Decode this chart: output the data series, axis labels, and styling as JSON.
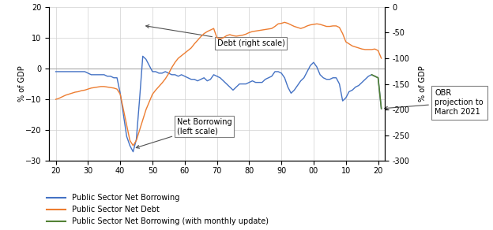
{
  "ylabel_left": "% of GDP",
  "ylabel_right": "% of GDP",
  "ylim_left": [
    -30,
    20
  ],
  "ylim_right": [
    0,
    300
  ],
  "yticks_left": [
    -30,
    -20,
    -10,
    0,
    10,
    20
  ],
  "yticks_right": [
    0,
    50,
    100,
    150,
    200,
    250,
    300
  ],
  "ytick_right_labels": [
    "0",
    "-50",
    "-100",
    "-150",
    "-200",
    "-250",
    "-300"
  ],
  "xtick_labels": [
    "20",
    "30",
    "40",
    "50",
    "60",
    "70",
    "80",
    "90",
    "00",
    "10",
    "20"
  ],
  "color_borrowing": "#4472C4",
  "color_debt": "#ED7D31",
  "color_green": "#538135",
  "legend_labels": [
    "Public Sector Net Borrowing",
    "Public Sector Net Debt",
    "Public Sector Net Borrowing (with monthly update)"
  ],
  "annotation_debt": "Debt (right scale)",
  "annotation_borrowing": "Net Borrowing\n(left scale)",
  "annotation_obr": "OBR\nprojection to\nMarch 2021",
  "background_color": "#ffffff",
  "grid_color": "#d0d0d0",
  "borrowing_years": [
    1920,
    1921,
    1922,
    1923,
    1924,
    1925,
    1926,
    1927,
    1928,
    1929,
    1930,
    1931,
    1932,
    1933,
    1934,
    1935,
    1936,
    1937,
    1938,
    1939,
    1940,
    1941,
    1942,
    1943,
    1944,
    1945,
    1946,
    1947,
    1948,
    1949,
    1950,
    1951,
    1952,
    1953,
    1954,
    1955,
    1956,
    1957,
    1958,
    1959,
    1960,
    1961,
    1962,
    1963,
    1964,
    1965,
    1966,
    1967,
    1968,
    1969,
    1970,
    1971,
    1972,
    1973,
    1974,
    1975,
    1976,
    1977,
    1978,
    1979,
    1980,
    1981,
    1982,
    1983,
    1984,
    1985,
    1986,
    1987,
    1988,
    1989,
    1990,
    1991,
    1992,
    1993,
    1994,
    1995,
    1996,
    1997,
    1998,
    1999,
    2000,
    2001,
    2002,
    2003,
    2004,
    2005,
    2006,
    2007,
    2008,
    2009,
    2010,
    2011,
    2012,
    2013,
    2014,
    2015,
    2016,
    2017,
    2018,
    2019,
    2020,
    2021
  ],
  "borrowing_vals": [
    -1.0,
    -1.0,
    -1.0,
    -1.0,
    -1.0,
    -1.0,
    -1.0,
    -1.0,
    -1.0,
    -1.0,
    -1.5,
    -2.0,
    -2.0,
    -2.0,
    -2.0,
    -2.0,
    -2.5,
    -2.5,
    -3.0,
    -3.0,
    -8.0,
    -15.0,
    -22.0,
    -25.0,
    -27.0,
    -23.0,
    -10.0,
    4.0,
    3.0,
    1.0,
    -1.0,
    -1.0,
    -1.5,
    -1.5,
    -1.0,
    -1.5,
    -2.0,
    -2.0,
    -2.5,
    -2.0,
    -2.5,
    -3.0,
    -3.5,
    -3.5,
    -4.0,
    -3.5,
    -3.0,
    -4.0,
    -3.5,
    -2.0,
    -2.5,
    -3.0,
    -4.0,
    -5.0,
    -6.0,
    -7.0,
    -6.0,
    -5.0,
    -5.0,
    -5.0,
    -4.5,
    -4.0,
    -4.5,
    -4.5,
    -4.5,
    -3.5,
    -3.0,
    -2.5,
    -1.0,
    -1.0,
    -1.5,
    -3.0,
    -6.0,
    -8.0,
    -7.0,
    -5.5,
    -4.0,
    -3.0,
    -1.0,
    1.0,
    2.0,
    0.5,
    -2.0,
    -3.0,
    -3.5,
    -3.5,
    -3.0,
    -3.0,
    -5.0,
    -10.5,
    -9.5,
    -7.5,
    -7.0,
    -6.0,
    -5.5,
    -4.5,
    -3.5,
    -2.5,
    -2.0,
    -2.5,
    -3.0,
    -13.0
  ],
  "debt_years": [
    1920,
    1921,
    1922,
    1923,
    1924,
    1925,
    1926,
    1927,
    1928,
    1929,
    1930,
    1931,
    1932,
    1933,
    1934,
    1935,
    1936,
    1937,
    1938,
    1939,
    1940,
    1941,
    1942,
    1943,
    1944,
    1945,
    1946,
    1947,
    1948,
    1949,
    1950,
    1951,
    1952,
    1953,
    1954,
    1955,
    1956,
    1957,
    1958,
    1959,
    1960,
    1961,
    1962,
    1963,
    1964,
    1965,
    1966,
    1967,
    1968,
    1969,
    1970,
    1971,
    1972,
    1973,
    1974,
    1975,
    1976,
    1977,
    1978,
    1979,
    1980,
    1981,
    1982,
    1983,
    1984,
    1985,
    1986,
    1987,
    1988,
    1989,
    1990,
    1991,
    1992,
    1993,
    1994,
    1995,
    1996,
    1997,
    1998,
    1999,
    2000,
    2001,
    2002,
    2003,
    2004,
    2005,
    2006,
    2007,
    2008,
    2009,
    2010,
    2011,
    2012,
    2013,
    2014,
    2015,
    2016,
    2017,
    2018,
    2019,
    2020,
    2021
  ],
  "debt_vals": [
    180,
    178,
    175,
    172,
    170,
    168,
    166,
    165,
    163,
    162,
    160,
    158,
    157,
    156,
    155,
    155,
    156,
    157,
    158,
    160,
    170,
    200,
    230,
    260,
    270,
    260,
    240,
    220,
    200,
    185,
    170,
    162,
    155,
    148,
    140,
    130,
    118,
    108,
    100,
    95,
    90,
    85,
    80,
    72,
    65,
    58,
    52,
    48,
    45,
    42,
    60,
    62,
    60,
    56,
    54,
    56,
    57,
    56,
    55,
    53,
    50,
    48,
    47,
    46,
    45,
    44,
    43,
    42,
    38,
    33,
    32,
    30,
    32,
    35,
    38,
    40,
    42,
    40,
    37,
    35,
    34,
    33,
    34,
    36,
    38,
    38,
    37,
    37,
    40,
    52,
    68,
    72,
    76,
    78,
    80,
    82,
    83,
    83,
    83,
    82,
    85,
    100
  ],
  "green_years": [
    2018,
    2019,
    2020,
    2021
  ],
  "green_vals": [
    -2.0,
    -2.5,
    -3.0,
    -13.0
  ]
}
